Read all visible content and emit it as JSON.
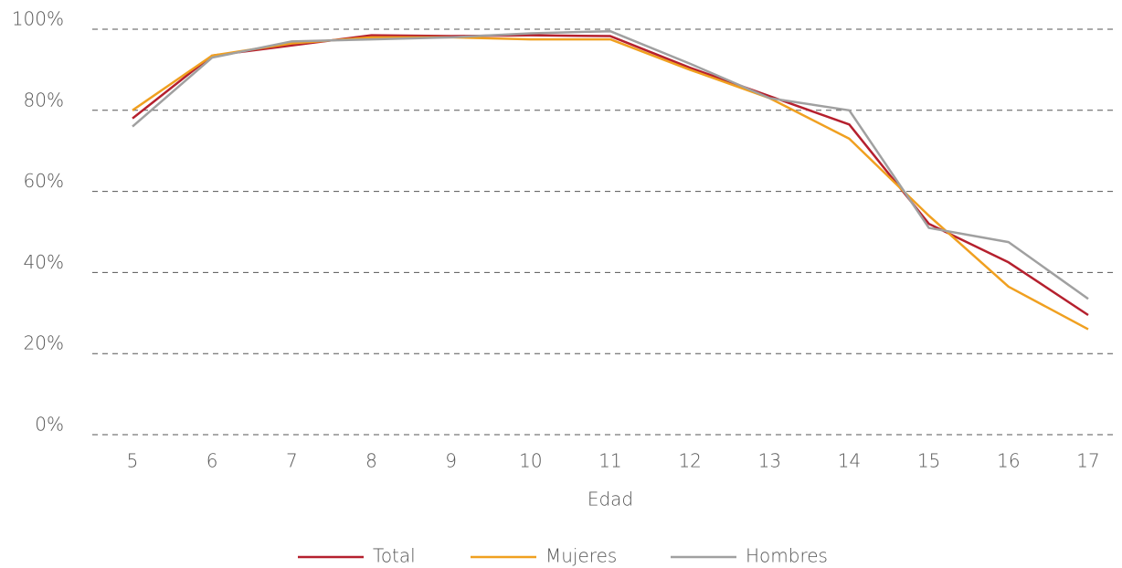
{
  "chart_data": {
    "type": "line",
    "x_label": "Edad",
    "categories": [
      "5",
      "6",
      "7",
      "8",
      "9",
      "10",
      "11",
      "12",
      "13",
      "14",
      "15",
      "16",
      "17"
    ],
    "series": [
      {
        "name": "Total",
        "color": "#b5202e",
        "values": [
          78,
          93.5,
          96,
          98.5,
          98.3,
          98.5,
          98.3,
          90.5,
          83.5,
          76.5,
          52,
          42.5,
          29.5
        ]
      },
      {
        "name": "Mujeres",
        "color": "#f0a020",
        "values": [
          80,
          93.5,
          96.5,
          98,
          98,
          97.5,
          97.5,
          90,
          83,
          73,
          54,
          36.5,
          26
        ]
      },
      {
        "name": "Hombres",
        "color": "#a0a0a0",
        "values": [
          76,
          93,
          97,
          97.5,
          98,
          99,
          99.5,
          91.5,
          83,
          80,
          51,
          47.5,
          33.5
        ]
      }
    ],
    "ylim": [
      0,
      100
    ],
    "yticks": [
      {
        "value": 0,
        "label": "0%"
      },
      {
        "value": 20,
        "label": "20%"
      },
      {
        "value": 40,
        "label": "40%"
      },
      {
        "value": 60,
        "label": "60%"
      },
      {
        "value": 80,
        "label": "80%"
      },
      {
        "value": 100,
        "label": "100%"
      }
    ],
    "grid": true,
    "legend": "bottom"
  }
}
